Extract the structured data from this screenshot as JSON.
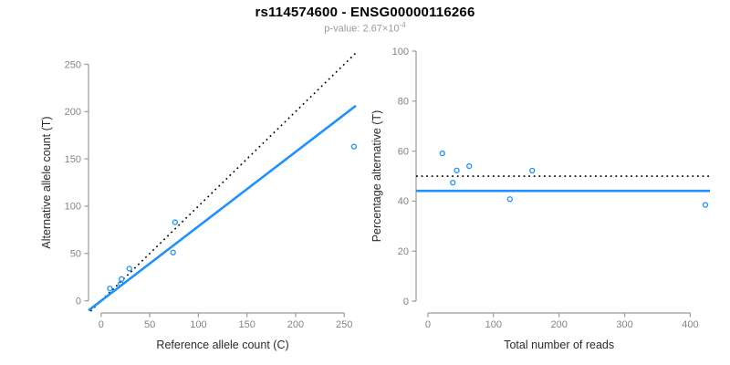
{
  "colors": {
    "accent_blue": "#1E90FF",
    "line_black": "#000000",
    "axis_line": "#9a9a9a",
    "tick_label": "#848484",
    "axis_title": "#2b2b2b",
    "subtitle_gray": "#9b9b9b"
  },
  "chart_data": {
    "figure_title": "rs114574600 - ENSG00000116266",
    "p_value_prefix": "p-value: 2.67×10",
    "p_value_exponent": "-4",
    "panels": [
      {
        "name": "allele-count-panel",
        "type": "scatter",
        "xlabel": "Reference allele count (C)",
        "ylabel": "Alternative allele count (T)",
        "xticks": [
          0,
          50,
          100,
          150,
          200,
          250
        ],
        "yticks": [
          0,
          50,
          100,
          150,
          200,
          250
        ],
        "xlim": [
          -13,
          262
        ],
        "ylim": [
          -11,
          263
        ],
        "grid": false,
        "legend": false,
        "marker": {
          "shape": "open-circle",
          "color": "#1E90FF"
        },
        "points": [
          [
            9,
            13
          ],
          [
            20,
            18
          ],
          [
            21,
            23
          ],
          [
            29,
            34
          ],
          [
            74,
            51
          ],
          [
            76,
            83
          ],
          [
            260,
            163
          ]
        ],
        "lines": [
          {
            "name": "identity-line",
            "type": "abline",
            "slope": 1,
            "intercept": 0,
            "style": "dotted",
            "color": "#000000"
          },
          {
            "name": "fitted-proportion-line",
            "type": "abline",
            "slope": 0.787,
            "intercept": 0,
            "style": "solid",
            "color": "#1E90FF"
          }
        ]
      },
      {
        "name": "percentage-panel",
        "type": "scatter",
        "xlabel": "Total number of reads",
        "ylabel": "Percentage alternative (T)",
        "xticks": [
          0,
          100,
          200,
          300,
          400
        ],
        "yticks": [
          0,
          20,
          40,
          60,
          80,
          100
        ],
        "xlim": [
          -18,
          430
        ],
        "ylim": [
          -4,
          100
        ],
        "grid": false,
        "legend": false,
        "marker": {
          "shape": "open-circle",
          "color": "#1E90FF"
        },
        "points": [
          [
            22,
            59.1
          ],
          [
            38,
            47.4
          ],
          [
            44,
            52.3
          ],
          [
            63,
            54.0
          ],
          [
            125,
            40.8
          ],
          [
            159,
            52.2
          ],
          [
            423,
            38.5
          ]
        ],
        "lines": [
          {
            "name": "null-50-percent-line",
            "type": "hline",
            "slope": 0,
            "intercept": 50,
            "style": "dotted",
            "color": "#000000"
          },
          {
            "name": "fitted-percentage-line",
            "type": "hline",
            "slope": 0,
            "intercept": 44.1,
            "style": "solid",
            "color": "#1E90FF"
          }
        ]
      }
    ]
  }
}
